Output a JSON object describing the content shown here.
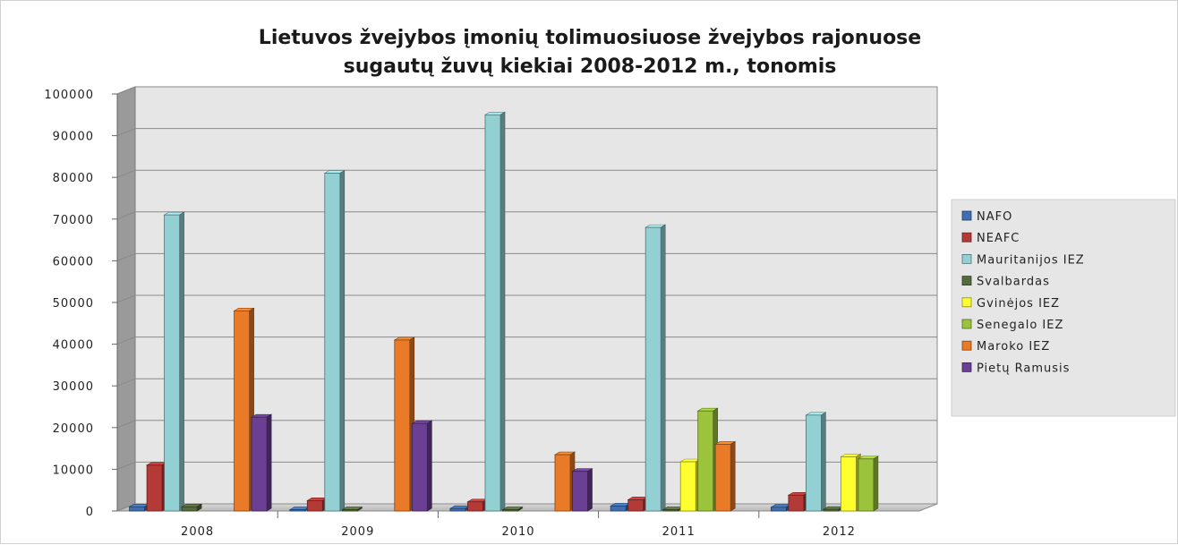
{
  "chart_data": {
    "type": "bar",
    "title": "Lietuvos žvejybos įmonių tolimuosiuose žvejybos rajonuose",
    "subtitle": "sugautų žuvų kiekiai 2008-2012 m., tonomis",
    "categories": [
      "2008",
      "2009",
      "2010",
      "2011",
      "2012"
    ],
    "ylim": [
      0,
      100000
    ],
    "yticks": [
      "0",
      "10000",
      "20000",
      "30000",
      "40000",
      "50000",
      "60000",
      "70000",
      "80000",
      "90000",
      "100000"
    ],
    "grid": true,
    "legend_position": "right",
    "series": [
      {
        "name": "NAFO",
        "color": "#3f6fb0",
        "values": [
          1000,
          300,
          600,
          1200,
          900
        ]
      },
      {
        "name": "NEAFC",
        "color": "#b43a37",
        "values": [
          11000,
          2500,
          2200,
          2700,
          3800
        ]
      },
      {
        "name": "Mauritanijos IEZ",
        "color": "#93d0d4",
        "values": [
          71000,
          81000,
          95000,
          68000,
          23000
        ]
      },
      {
        "name": "Svalbardas",
        "color": "#556b3e",
        "values": [
          1000,
          300,
          300,
          300,
          400
        ]
      },
      {
        "name": "Gvinėjos IEZ",
        "color": "#ffff2e",
        "values": [
          0,
          0,
          0,
          11800,
          13000
        ]
      },
      {
        "name": "Senegalo IEZ",
        "color": "#9bc33c",
        "values": [
          0,
          0,
          0,
          24000,
          12500
        ]
      },
      {
        "name": "Maroko IEZ",
        "color": "#e97a27",
        "values": [
          48000,
          41000,
          13500,
          16000,
          0
        ]
      },
      {
        "name": "Pietų Ramusis",
        "color": "#6b3f93",
        "values": [
          22500,
          21000,
          9500,
          0,
          0
        ]
      }
    ]
  }
}
